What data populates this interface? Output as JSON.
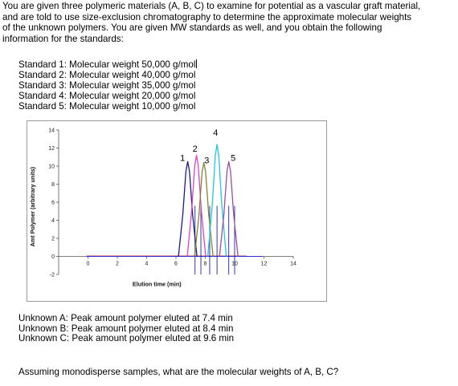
{
  "intro": {
    "lines": [
      "You are given three polymeric materials (A, B, C) to examine for potential as a vascular graft material,",
      "and are told to use size-exclusion chromatography to determine the approximate molecular weights",
      "of the unknown polymers. You are given MW standards as well, and you obtain the following",
      "information for the standards:"
    ]
  },
  "standards": [
    "Standard 1: Molecular weight 50,000 g/mol",
    "Standard 2: Molecular weight 40,000 g/mol",
    "Standard 3: Molecular weight 35,000 g/mol",
    "Standard 4: Molecular weight 20,000 g/mol",
    "Standard 5: Molecular weight 10,000 g/mol"
  ],
  "chart_data": {
    "type": "line",
    "xlabel": "Elution time (min)",
    "ylabel": "Amt Polymer (arbitrary units)",
    "xlim": [
      -2,
      14
    ],
    "ylim": [
      -2,
      14
    ],
    "x_ticks": [
      0,
      2,
      4,
      6,
      8,
      10,
      12,
      14
    ],
    "x_tick_labels": [
      "0",
      "2",
      "4",
      "6",
      "8",
      "10",
      "12",
      "14"
    ],
    "y_ticks": [
      -2,
      0,
      2,
      4,
      6,
      8,
      10,
      12,
      14
    ],
    "y_tick_labels": [
      "-2",
      "0",
      "2",
      "4",
      "6",
      "8",
      "10",
      "12",
      "14"
    ],
    "grid": false,
    "series": [
      {
        "label": "1",
        "color": "#1a1a8c",
        "peak_x": 6.8,
        "peak_y": 10.5,
        "label_x": 6.45,
        "label_y": 10.6
      },
      {
        "label": "2",
        "color": "#e040c8",
        "peak_x": 7.4,
        "peak_y": 11.2,
        "label_x": 7.3,
        "label_y": 11.6
      },
      {
        "label": "3",
        "color": "#7c8a2e",
        "peak_x": 7.9,
        "peak_y": 10.4,
        "label_x": 8.1,
        "label_y": 10.3
      },
      {
        "label": "4",
        "color": "#1cc6e8",
        "peak_x": 8.8,
        "peak_y": 12.4,
        "label_x": 8.7,
        "label_y": 13.4
      },
      {
        "label": "5",
        "color": "#9b4fa0",
        "peak_x": 9.6,
        "peak_y": 10.5,
        "label_x": 9.9,
        "label_y": 10.6
      }
    ],
    "markers": [
      7.3,
      7.7,
      8.3,
      8.8,
      9.6,
      10.0
    ],
    "baseline_colors": [
      "#2b2bd9",
      "#d63c3c"
    ]
  },
  "unknowns": [
    "Unknown A: Peak amount polymer eluted at 7.4 min",
    "Unknown B: Peak amount polymer eluted at 8.4 min",
    "Unknown C: Peak amount polymer eluted at 9.6 min"
  ],
  "question": "Assuming monodisperse samples, what are the molecular weights of A, B, C?"
}
